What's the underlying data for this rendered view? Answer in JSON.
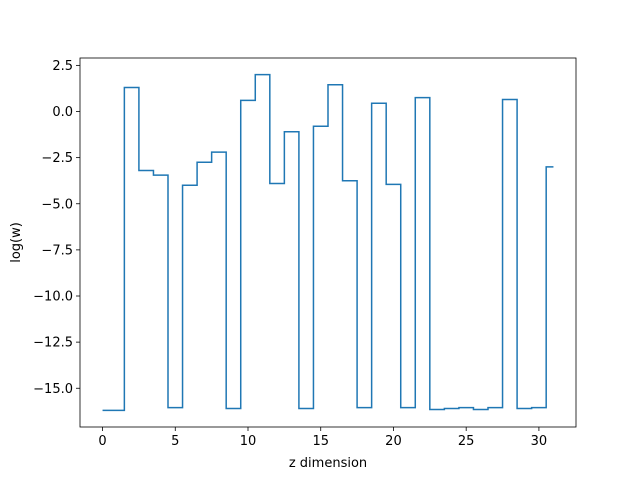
{
  "chart_data": {
    "type": "line",
    "step": "mid",
    "title": "",
    "xlabel": "z dimension",
    "ylabel": "log(w)",
    "xlim": [
      -1.55,
      32.55
    ],
    "ylim": [
      -17.1,
      2.9
    ],
    "xticks": [
      0,
      5,
      10,
      15,
      20,
      25,
      30
    ],
    "xtick_labels": [
      "0",
      "5",
      "10",
      "15",
      "20",
      "25",
      "30"
    ],
    "yticks": [
      2.5,
      0.0,
      -2.5,
      -5.0,
      -7.5,
      -10.0,
      -12.5,
      -15.0
    ],
    "ytick_labels": [
      "2.5",
      "0.0",
      "−2.5",
      "−5.0",
      "−7.5",
      "−10.0",
      "−12.5",
      "−15.0"
    ],
    "grid": false,
    "series": [
      {
        "color": "#1f77b4",
        "x": [
          0,
          1,
          2,
          3,
          4,
          5,
          6,
          7,
          8,
          9,
          10,
          11,
          12,
          13,
          14,
          15,
          16,
          17,
          18,
          19,
          20,
          21,
          22,
          23,
          24,
          25,
          26,
          27,
          28,
          29,
          30,
          31
        ],
        "values": [
          -16.2,
          -16.2,
          1.3,
          -3.2,
          -3.45,
          -16.05,
          -4.0,
          -2.75,
          -2.2,
          -16.1,
          0.6,
          2.0,
          -3.9,
          -1.1,
          -16.1,
          -0.8,
          1.45,
          -3.75,
          -16.05,
          0.45,
          -3.95,
          -16.05,
          0.75,
          -16.15,
          -16.1,
          -16.05,
          -16.15,
          -16.05,
          0.65,
          -16.1,
          -16.05,
          -3.0
        ]
      }
    ]
  }
}
